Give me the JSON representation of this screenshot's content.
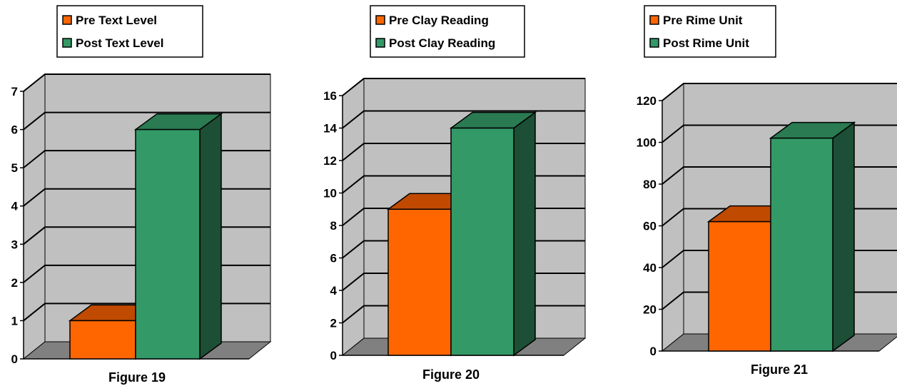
{
  "colors": {
    "pre": "#ff6600",
    "pre_top": "#c04a00",
    "post": "#339966",
    "post_top": "#2a7a52",
    "post_side": "#1c4f35",
    "wall": "#c0c0c0",
    "floor": "#808080"
  },
  "chart_data": [
    {
      "type": "bar",
      "title": "Figure 19",
      "categories": [
        ""
      ],
      "series": [
        {
          "name": "Pre Text Level",
          "values": [
            1
          ]
        },
        {
          "name": "Post Text Level",
          "values": [
            6
          ]
        }
      ],
      "ylim": [
        0,
        7
      ],
      "yticks": [
        "0",
        "1",
        "2",
        "3",
        "4",
        "5",
        "6",
        "7"
      ],
      "legend": "top",
      "grid": true
    },
    {
      "type": "bar",
      "title": "Figure 20",
      "categories": [
        ""
      ],
      "series": [
        {
          "name": "Pre Clay Reading",
          "values": [
            9
          ]
        },
        {
          "name": "Post Clay Reading",
          "values": [
            14
          ]
        }
      ],
      "ylim": [
        0,
        16
      ],
      "yticks": [
        "0",
        "2",
        "4",
        "6",
        "8",
        "10",
        "12",
        "14",
        "16"
      ],
      "legend": "top",
      "grid": true
    },
    {
      "type": "bar",
      "title": "Figure 21",
      "categories": [
        ""
      ],
      "series": [
        {
          "name": "Pre Rime Unit",
          "values": [
            62
          ]
        },
        {
          "name": "Post Rime Unit",
          "values": [
            102
          ]
        }
      ],
      "ylim": [
        0,
        120
      ],
      "yticks": [
        "0",
        "20",
        "40",
        "60",
        "80",
        "100",
        "120"
      ],
      "legend": "top",
      "grid": true
    }
  ]
}
